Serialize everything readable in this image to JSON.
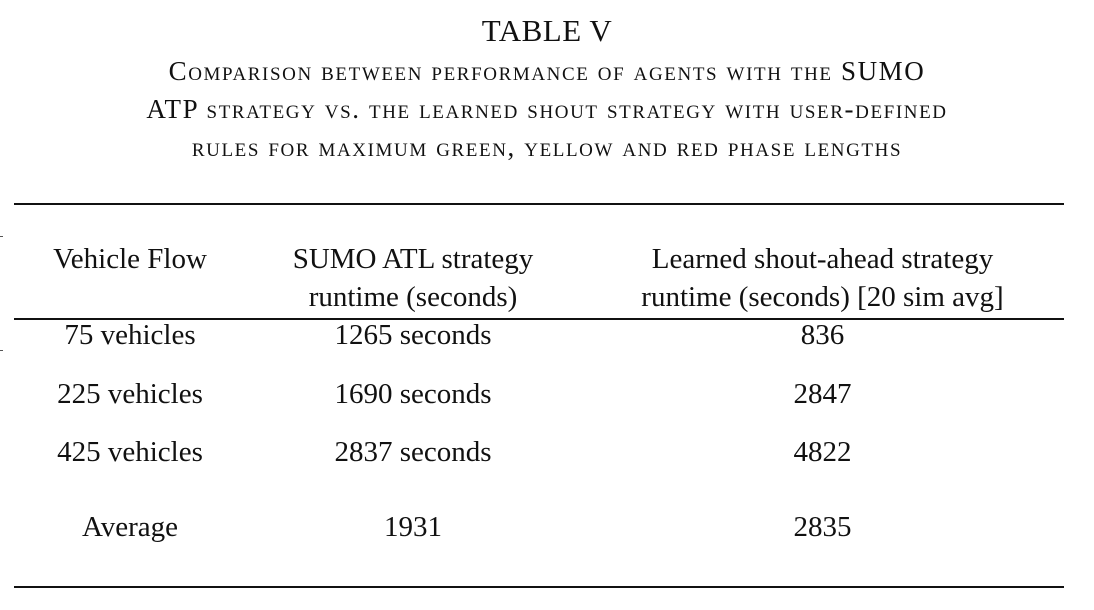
{
  "table": {
    "label": "TABLE V",
    "caption_lines": [
      "Comparison between performance of agents with the SUMO",
      "ATP strategy vs. the learned shout strategy with user-defined",
      "rules for maximum green, yellow and red phase lengths"
    ],
    "headers": [
      [
        "Vehicle Flow"
      ],
      [
        "SUMO ATL strategy",
        "runtime (seconds)"
      ],
      [
        "Learned shout-ahead strategy",
        "runtime (seconds) [20 sim avg]"
      ]
    ],
    "rows": [
      [
        "75 vehicles",
        "1265 seconds",
        "836"
      ],
      [
        "225 vehicles",
        "1690 seconds",
        "2847"
      ],
      [
        "425 vehicles",
        "2837 seconds",
        "4822"
      ],
      [
        "Average",
        "1931",
        "2835"
      ]
    ]
  }
}
